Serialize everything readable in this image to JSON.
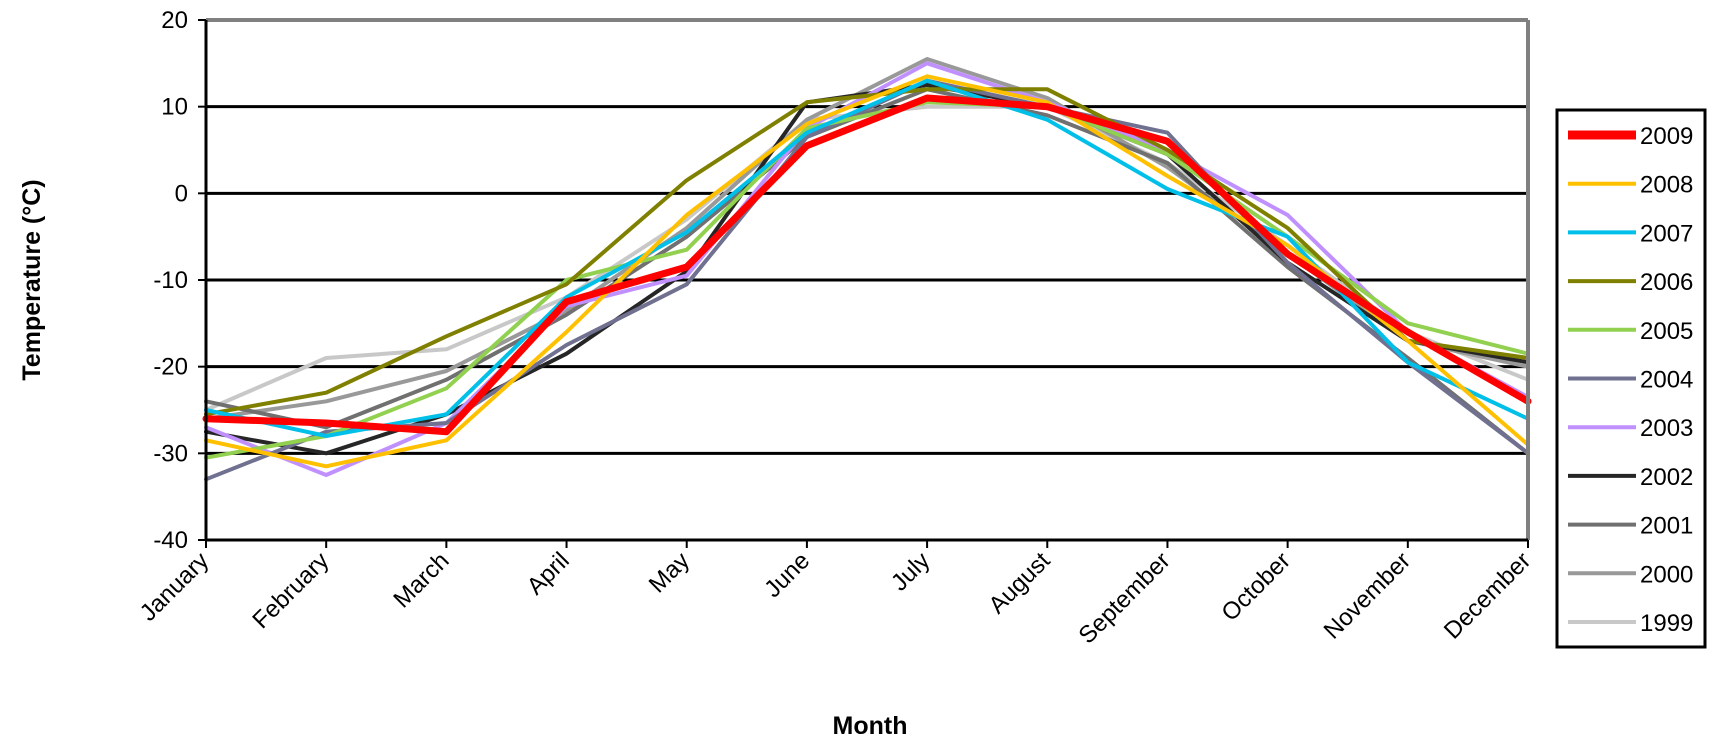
{
  "chart_data": {
    "type": "line",
    "title": "",
    "xlabel": "Month",
    "ylabel": "Temperature (°C)",
    "ylim": [
      -40,
      20
    ],
    "yticks": [
      20,
      10,
      0,
      -10,
      -20,
      -30,
      -40
    ],
    "grid": true,
    "legend_position": "right",
    "categories": [
      "January",
      "February",
      "March",
      "April",
      "May",
      "June",
      "July",
      "August",
      "September",
      "October",
      "November",
      "December"
    ],
    "series": [
      {
        "name": "2009",
        "color": "#ff0000",
        "values": [
          -26,
          -26.5,
          -27.5,
          -12.5,
          -8.5,
          5.5,
          11,
          10,
          6,
          -7,
          -16,
          -24
        ]
      },
      {
        "name": "2008",
        "color": "#ffc000",
        "values": [
          -28.5,
          -31.5,
          -28.5,
          -16,
          -2.5,
          8,
          13.5,
          10.5,
          2,
          -6,
          -17,
          -29
        ]
      },
      {
        "name": "2007",
        "color": "#00bfe8",
        "values": [
          -25,
          -28,
          -25.5,
          -12,
          -4.5,
          7,
          13,
          8.5,
          0.5,
          -5,
          -19.5,
          -26
        ]
      },
      {
        "name": "2006",
        "color": "#808000",
        "values": [
          -25.5,
          -23,
          -16.5,
          -10.5,
          1.5,
          10.5,
          12,
          12,
          5,
          -4,
          -17,
          -19
        ]
      },
      {
        "name": "2005",
        "color": "#92d050",
        "values": [
          -30.5,
          -28,
          -22.5,
          -10,
          -6.5,
          7.5,
          10.5,
          10,
          4.5,
          -5,
          -15,
          -18.5
        ]
      },
      {
        "name": "2004",
        "color": "#707090",
        "values": [
          -33,
          -27.5,
          -26.5,
          -17.5,
          -10.5,
          6.5,
          13,
          10,
          7,
          -8,
          -19.5,
          -30
        ]
      },
      {
        "name": "2003",
        "color": "#c090ff",
        "values": [
          -27,
          -32.5,
          -26.5,
          -13,
          -9.5,
          7.5,
          15,
          10.5,
          5,
          -2.5,
          -16,
          -23.5
        ]
      },
      {
        "name": "2002",
        "color": "#262626",
        "values": [
          -27.5,
          -30,
          -25.5,
          -18.5,
          -9,
          10.5,
          12.5,
          10,
          4.5,
          -8,
          -17,
          -19.5
        ]
      },
      {
        "name": "2001",
        "color": "#707070",
        "values": [
          -24,
          -27,
          -21.5,
          -14,
          -5,
          6.5,
          12,
          9,
          3.5,
          -8.5,
          -19,
          -30
        ]
      },
      {
        "name": "2000",
        "color": "#999999",
        "values": [
          -26,
          -24,
          -20.5,
          -13.5,
          -4,
          8.5,
          15.5,
          11,
          3,
          -7,
          -17,
          -20
        ]
      },
      {
        "name": "1999",
        "color": "#c8c8c8",
        "values": [
          -25,
          -19,
          -18,
          -12,
          -3,
          8.5,
          10,
          10,
          3.5,
          -6,
          -16,
          -21.5
        ]
      }
    ]
  }
}
